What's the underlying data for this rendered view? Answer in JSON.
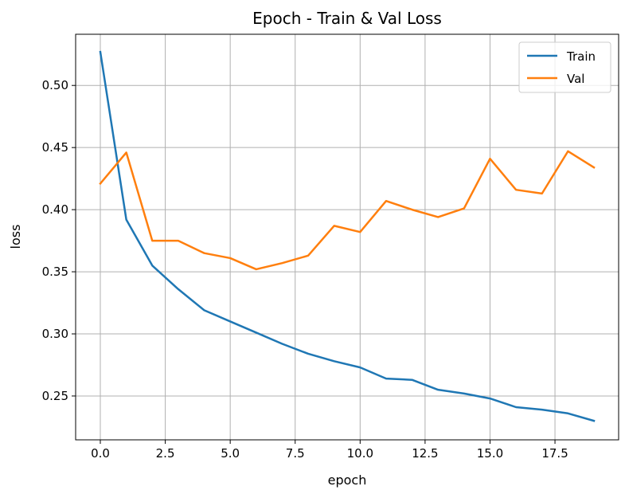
{
  "chart_data": {
    "type": "line",
    "title": "Epoch - Train & Val Loss",
    "xlabel": "epoch",
    "ylabel": "loss",
    "xlim": [
      -0.95,
      19.95
    ],
    "ylim": [
      0.2147,
      0.5412
    ],
    "xticks": [
      0.0,
      2.5,
      5.0,
      7.5,
      10.0,
      12.5,
      15.0,
      17.5
    ],
    "xtick_labels": [
      "0.0",
      "2.5",
      "5.0",
      "7.5",
      "10.0",
      "12.5",
      "15.0",
      "17.5"
    ],
    "yticks": [
      0.25,
      0.3,
      0.35,
      0.4,
      0.45,
      0.5
    ],
    "ytick_labels": [
      "0.25",
      "0.30",
      "0.35",
      "0.40",
      "0.45",
      "0.50"
    ],
    "grid": true,
    "legend_position": "top-right",
    "x": [
      0,
      1,
      2,
      3,
      4,
      5,
      6,
      7,
      8,
      9,
      10,
      11,
      12,
      13,
      14,
      15,
      16,
      17,
      18,
      19
    ],
    "series": [
      {
        "name": "Train",
        "color": "#1f77b4",
        "values": [
          0.527,
          0.392,
          0.355,
          0.336,
          0.319,
          0.31,
          0.301,
          0.292,
          0.284,
          0.278,
          0.273,
          0.264,
          0.263,
          0.255,
          0.252,
          0.248,
          0.241,
          0.239,
          0.236,
          0.23
        ]
      },
      {
        "name": "Val",
        "color": "#ff7f0e",
        "values": [
          0.421,
          0.446,
          0.375,
          0.375,
          0.365,
          0.361,
          0.352,
          0.357,
          0.363,
          0.387,
          0.382,
          0.407,
          0.4,
          0.394,
          0.401,
          0.441,
          0.416,
          0.413,
          0.447,
          0.434
        ]
      }
    ]
  }
}
